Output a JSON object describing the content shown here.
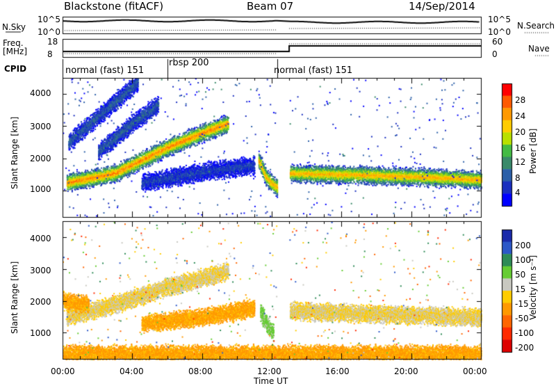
{
  "header": {
    "radar": "Blackstone (fitACF)",
    "beam": "Beam 07",
    "date": "14/Sep/2014"
  },
  "side_labels": {
    "nsky": "N.Sky",
    "freq_line1": "Freq.",
    "freq_line2": "[MHz]",
    "cpid": "CPID",
    "nsearch": "N.Search",
    "nave": "Nave"
  },
  "small_axes": {
    "nsky_ticks": [
      "10^5",
      "10^0"
    ],
    "freq_ticks": [
      "18",
      "8"
    ],
    "nsearch_ticks": [
      "10^5",
      "10^0"
    ],
    "nave_ticks": [
      "60",
      "0"
    ]
  },
  "cpid_segments": [
    {
      "label": "normal (fast) 151",
      "start_h": 0.0,
      "end_h": 6.0
    },
    {
      "label": "rbsp 200",
      "start_h": 6.0,
      "end_h": 12.3
    },
    {
      "label": "normal (fast) 151",
      "start_h": 12.3,
      "end_h": 24.0
    }
  ],
  "axis": {
    "ylabel": "Slant Range [km]",
    "yticks": [
      "4000",
      "3000",
      "2000",
      "1000"
    ],
    "xticks": [
      "00:00",
      "04:00",
      "08:00",
      "12:00",
      "16:00",
      "20:00",
      "00:00"
    ],
    "xlabel": "Time UT"
  },
  "colorbars": {
    "power": {
      "label": "Power [dB]",
      "ticks": [
        "28",
        "24",
        "20",
        "16",
        "12",
        "8",
        "4"
      ],
      "colors": [
        "#ff0000",
        "#ff5a00",
        "#ff9900",
        "#ffcc00",
        "#b9e000",
        "#44bb44",
        "#3a8a6a",
        "#2b5fa8",
        "#1a2fbf",
        "#0000ff"
      ]
    },
    "velocity": {
      "label": "Velocity [m s⁻¹]",
      "ticks": [
        "200",
        "100",
        "50",
        "15",
        "-15",
        "-50",
        "-100",
        "-200"
      ],
      "colors": [
        "#1a2aaa",
        "#2c58c8",
        "#2e8b57",
        "#66cc33",
        "#c8c8c0",
        "#ffcc00",
        "#ff9900",
        "#ff6600",
        "#ff2a00",
        "#dd0000"
      ]
    }
  },
  "chart_data": [
    {
      "type": "heatmap",
      "title": "Power",
      "x_range_h": [
        0,
        24
      ],
      "y_range_km": [
        180,
        4500
      ],
      "colorbar_range": [
        0,
        30
      ],
      "bands": [
        {
          "name": "main echo 00-06",
          "points_h_km": [
            [
              0.2,
              1250
            ],
            [
              3,
              1550
            ],
            [
              6,
              2350
            ],
            [
              8,
              2800
            ],
            [
              9.5,
              3100
            ]
          ],
          "value": 24
        },
        {
          "name": "upper diagonal",
          "points_h_km": [
            [
              0.3,
              2500
            ],
            [
              2,
              3300
            ],
            [
              3.5,
              4000
            ],
            [
              4.3,
              4400
            ]
          ],
          "value": 8
        },
        {
          "name": "second diagonal",
          "points_h_km": [
            [
              2,
              2200
            ],
            [
              4,
              3100
            ],
            [
              5.5,
              3700
            ]
          ],
          "value": 8
        },
        {
          "name": "mid patch",
          "points_h_km": [
            [
              4.5,
              1250
            ],
            [
              8,
              1600
            ],
            [
              11,
              1800
            ]
          ],
          "value": 6
        },
        {
          "name": "pre-noon curve",
          "points_h_km": [
            [
              11.2,
              2000
            ],
            [
              11.7,
              1400
            ],
            [
              12.3,
              1100
            ]
          ],
          "value": 22
        },
        {
          "name": "afternoon band",
          "points_h_km": [
            [
              13,
              1550
            ],
            [
              17,
              1500
            ],
            [
              20,
              1450
            ],
            [
              24,
              1350
            ]
          ],
          "value": 22
        }
      ],
      "gaps_h": [
        [
          12.3,
          13.0
        ]
      ]
    },
    {
      "type": "heatmap",
      "title": "Velocity",
      "x_range_h": [
        0,
        24
      ],
      "y_range_km": [
        180,
        4500
      ],
      "colorbar_range": [
        -200,
        200
      ],
      "bands": [
        {
          "name": "grey main echo",
          "points_h_km": [
            [
              0.2,
              1500
            ],
            [
              3,
              1900
            ],
            [
              6,
              2450
            ],
            [
              9.5,
              2950
            ]
          ],
          "value": 0
        },
        {
          "name": "orange early",
          "points_h_km": [
            [
              0,
              2000
            ],
            [
              1.5,
              1900
            ]
          ],
          "value": -50
        },
        {
          "name": "orange mid",
          "points_h_km": [
            [
              4.5,
              1300
            ],
            [
              8,
              1500
            ],
            [
              11,
              1800
            ]
          ],
          "value": -50
        },
        {
          "name": "green pre-noon",
          "points_h_km": [
            [
              11.3,
              1700
            ],
            [
              11.7,
              1300
            ],
            [
              12.1,
              1000
            ]
          ],
          "value": 50
        },
        {
          "name": "grey afternoon",
          "points_h_km": [
            [
              13,
              1700
            ],
            [
              18,
              1600
            ],
            [
              24,
              1500
            ]
          ],
          "value": 0
        },
        {
          "name": "ground scatter low",
          "points_h_km": [
            [
              0,
              350
            ],
            [
              24,
              350
            ]
          ],
          "value": -50
        }
      ],
      "gaps_h": [
        [
          12.3,
          13.0
        ]
      ]
    }
  ]
}
